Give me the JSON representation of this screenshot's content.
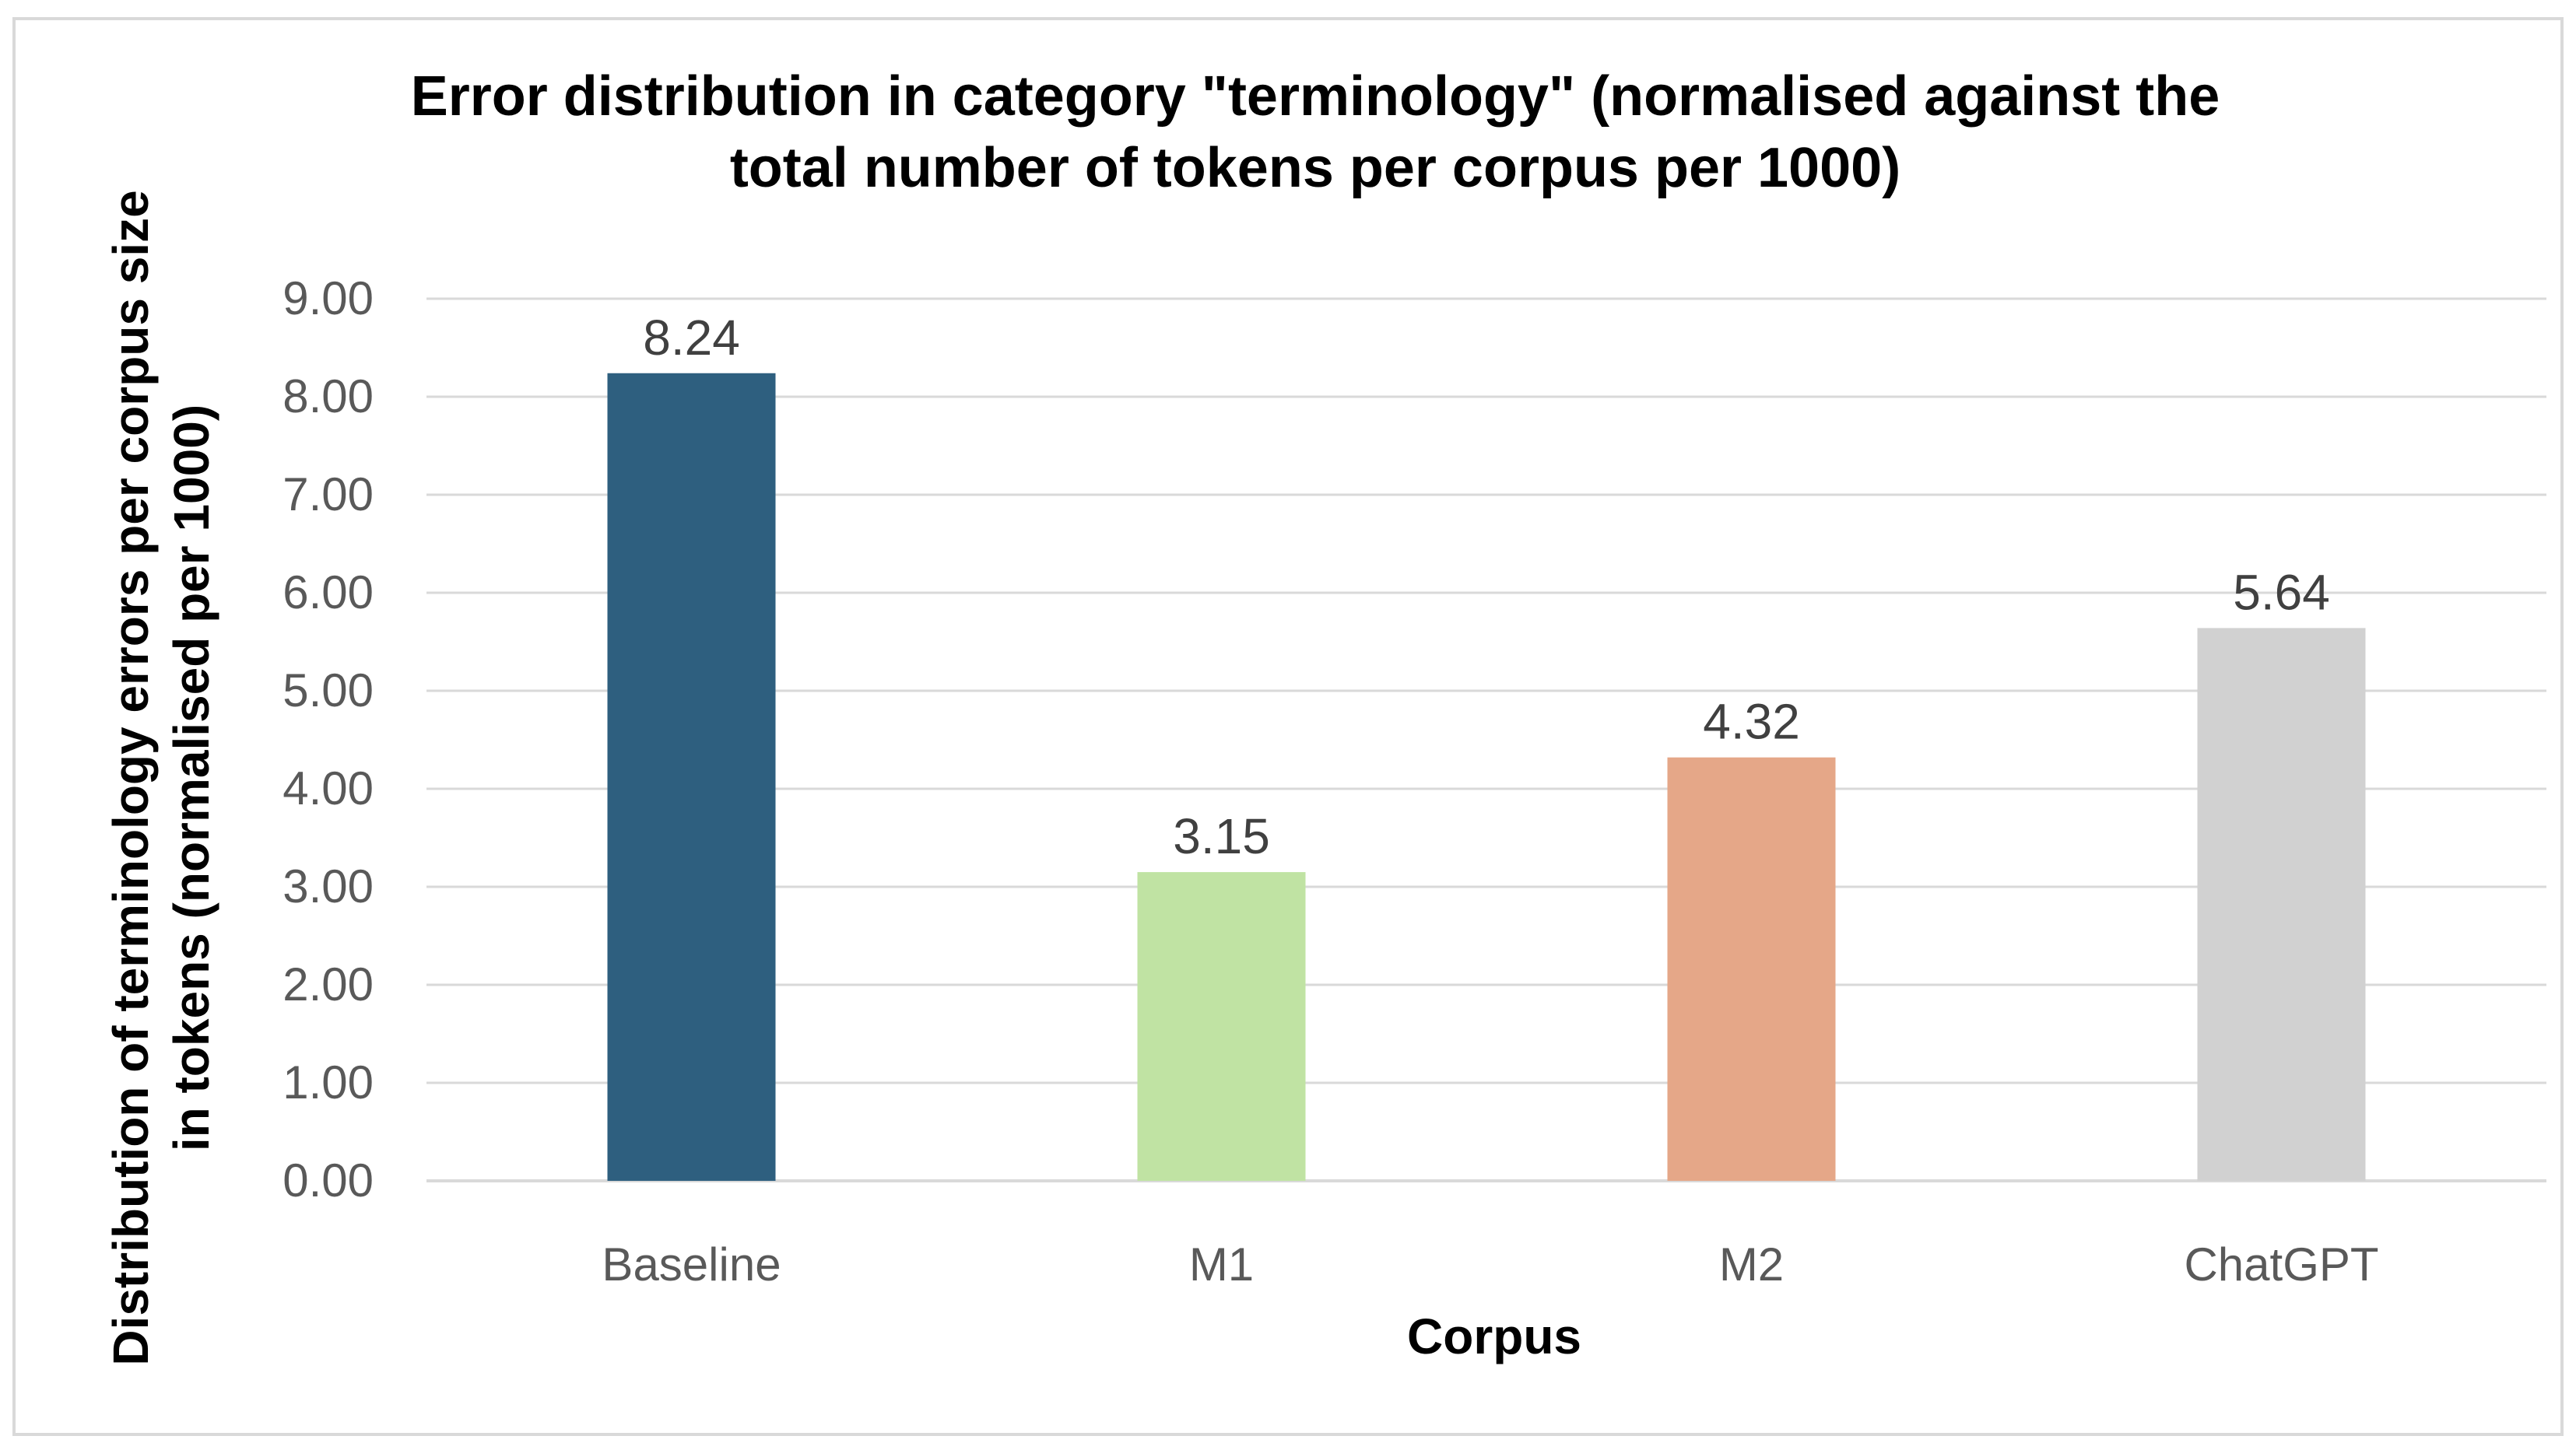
{
  "chart_data": {
    "type": "bar",
    "title_lines": [
      "Error distribution in category \"terminology\" (normalised against the",
      "total number of tokens per corpus per 1000)"
    ],
    "xlabel": "Corpus",
    "ylabel_lines": [
      "Distribution of terminology errors per corpus size",
      "in tokens  (normalised per 1000)"
    ],
    "categories": [
      "Baseline",
      "M1",
      "M2",
      "ChatGPT"
    ],
    "values": [
      8.24,
      3.15,
      4.32,
      5.64
    ],
    "value_labels": [
      "8.24",
      "3.15",
      "4.32",
      "5.64"
    ],
    "colors": [
      "#2e5f7f",
      "#c0e3a3",
      "#e5a788",
      "#d1d1d1"
    ],
    "ylim": [
      0,
      9
    ],
    "yticks": [
      "0.00",
      "1.00",
      "2.00",
      "3.00",
      "4.00",
      "5.00",
      "6.00",
      "7.00",
      "8.00",
      "9.00"
    ],
    "grid": true,
    "legend": "none"
  }
}
